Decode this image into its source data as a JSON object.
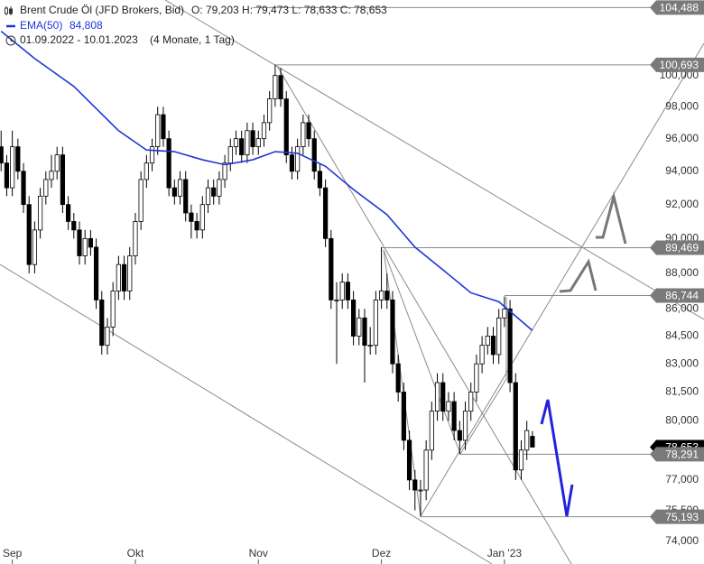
{
  "chart_data": {
    "type": "candlestick",
    "title": "Brent Crude Öl (JFD Brokers, Bid)",
    "ohlc_text": "O: 79,203  H: 79,473  L: 78,633  C: 78,653",
    "date_range": "01.09.2022 - 10.01.2023",
    "period": "(4 Monate, 1 Tag)",
    "log_scale": true,
    "ylim": [
      72.93,
      105.0
    ],
    "yticks": [
      {
        "value": 100,
        "label": "100,000"
      },
      {
        "value": 98,
        "label": "98,000"
      },
      {
        "value": 96,
        "label": "96,000"
      },
      {
        "value": 94,
        "label": "94,000"
      },
      {
        "value": 92,
        "label": "92,000"
      },
      {
        "value": 90,
        "label": "90,000"
      },
      {
        "value": 88,
        "label": "88,000"
      },
      {
        "value": 86,
        "label": "86,000"
      },
      {
        "value": 84.5,
        "label": "84,500"
      },
      {
        "value": 83,
        "label": "83,000"
      },
      {
        "value": 81.5,
        "label": "81,500"
      },
      {
        "value": 80,
        "label": "80,000"
      },
      {
        "value": 77,
        "label": "77,000"
      },
      {
        "value": 75.5,
        "label": "75,500"
      },
      {
        "value": 74,
        "label": "74,000"
      }
    ],
    "xlim": [
      -0.2,
      116
    ],
    "xticks": [
      {
        "value": 2,
        "label": "Sep"
      },
      {
        "value": 24,
        "label": "Okt"
      },
      {
        "value": 46,
        "label": "Nov"
      },
      {
        "value": 68,
        "label": "Dez"
      },
      {
        "value": 90,
        "label": "Jan '23"
      }
    ],
    "up_color": "#ffffff",
    "down_color": "#000000",
    "candles": [
      [
        95.5,
        96.5,
        94,
        94.5
      ],
      [
        94.5,
        95,
        92.5,
        93
      ],
      [
        93,
        96.5,
        92.5,
        95.5
      ],
      [
        95.5,
        96,
        93.5,
        94
      ],
      [
        94,
        94.5,
        91.5,
        92
      ],
      [
        92,
        92.5,
        88,
        88.5
      ],
      [
        88.5,
        91,
        88,
        90.5
      ],
      [
        90.5,
        93,
        90,
        92.5
      ],
      [
        92.5,
        94,
        92,
        93.5
      ],
      [
        93.5,
        95,
        93,
        94
      ],
      [
        94,
        95.5,
        93.5,
        95
      ],
      [
        95,
        95.5,
        91.5,
        92
      ],
      [
        92,
        92.5,
        90.5,
        91
      ],
      [
        91,
        91.5,
        90,
        90.5
      ],
      [
        90.5,
        91,
        88.5,
        89
      ],
      [
        89,
        90.5,
        88.5,
        90
      ],
      [
        90,
        90.5,
        89,
        89.5
      ],
      [
        89.5,
        90,
        86,
        86.5
      ],
      [
        86.5,
        87,
        83.5,
        84
      ],
      [
        84,
        85.5,
        83.5,
        85
      ],
      [
        85,
        87.5,
        84.5,
        87
      ],
      [
        87,
        89,
        86.5,
        88.5
      ],
      [
        88.5,
        89,
        86.5,
        87
      ],
      [
        87,
        89.5,
        86.5,
        89
      ],
      [
        89,
        91.5,
        88.5,
        91
      ],
      [
        91,
        94,
        90.5,
        93.5
      ],
      [
        93.5,
        95,
        93,
        94.5
      ],
      [
        94.5,
        96,
        94,
        95.5
      ],
      [
        95.5,
        98,
        95,
        97.5
      ],
      [
        97.5,
        98,
        95.5,
        96
      ],
      [
        96,
        96.5,
        92.5,
        93
      ],
      [
        93,
        93.5,
        92,
        92.5
      ],
      [
        92.5,
        94,
        92,
        93.5
      ],
      [
        93.5,
        94,
        91,
        91.5
      ],
      [
        91.5,
        92,
        90,
        91
      ],
      [
        91,
        91.5,
        90,
        90.5
      ],
      [
        90.5,
        92.5,
        90,
        92
      ],
      [
        92,
        93.5,
        91.5,
        93
      ],
      [
        93,
        93.5,
        92,
        92.5
      ],
      [
        92.5,
        94,
        92,
        93.5
      ],
      [
        93.5,
        95,
        93,
        94.5
      ],
      [
        94.5,
        96,
        94,
        95.5
      ],
      [
        95.5,
        96.5,
        95,
        96
      ],
      [
        96,
        96.5,
        94.5,
        95
      ],
      [
        95,
        97,
        94.5,
        96.5
      ],
      [
        96.5,
        97,
        95,
        95.5
      ],
      [
        95.5,
        96.5,
        95,
        96
      ],
      [
        96,
        97.5,
        95.5,
        97
      ],
      [
        97,
        99,
        96.5,
        98.5
      ],
      [
        98.5,
        100.7,
        98,
        100
      ],
      [
        100,
        100.5,
        98,
        98.5
      ],
      [
        98.5,
        99,
        94.5,
        95
      ],
      [
        95,
        95.5,
        93.5,
        94
      ],
      [
        94,
        96,
        93.5,
        95.5
      ],
      [
        95.5,
        97.5,
        95,
        97
      ],
      [
        97,
        97.5,
        95.5,
        96
      ],
      [
        96,
        96.5,
        93.5,
        94
      ],
      [
        94,
        94.5,
        92.5,
        93
      ],
      [
        93,
        93.5,
        89.5,
        90
      ],
      [
        90,
        90.5,
        86,
        86.5
      ],
      [
        86.5,
        87.5,
        83,
        86.5
      ],
      [
        86.5,
        88,
        86,
        87.5
      ],
      [
        87.5,
        88,
        86,
        86.5
      ],
      [
        86.5,
        87,
        84,
        84.5
      ],
      [
        84.5,
        86,
        84,
        85.5
      ],
      [
        85.5,
        86,
        82,
        84
      ],
      [
        84,
        85,
        83.5,
        84
      ],
      [
        84,
        87,
        83.5,
        86.5
      ],
      [
        86.5,
        89.5,
        86,
        87
      ],
      [
        87,
        88,
        86,
        86.5
      ],
      [
        86.5,
        87,
        82.5,
        83
      ],
      [
        83,
        83.5,
        81,
        81.5
      ],
      [
        81.5,
        82,
        78.5,
        79
      ],
      [
        79,
        79.5,
        76.5,
        77
      ],
      [
        77,
        77.5,
        75.5,
        76.5
      ],
      [
        76.5,
        77,
        75.2,
        76.5
      ],
      [
        76.5,
        79,
        76,
        78.5
      ],
      [
        78.5,
        81,
        78,
        80.5
      ],
      [
        80.5,
        82.5,
        80,
        82
      ],
      [
        82,
        82.5,
        80,
        80.5
      ],
      [
        80.5,
        81.5,
        80,
        81
      ],
      [
        81,
        81.5,
        79,
        79.5
      ],
      [
        79.5,
        80,
        78.3,
        79
      ],
      [
        79,
        81,
        78.5,
        80.5
      ],
      [
        80.5,
        82,
        80,
        81.5
      ],
      [
        81.5,
        83.5,
        81,
        83
      ],
      [
        83,
        84.5,
        82.5,
        84
      ],
      [
        84,
        85,
        83.5,
        84.5
      ],
      [
        84.5,
        85,
        83,
        83.5
      ],
      [
        83.5,
        86,
        83,
        85.5
      ],
      [
        85.5,
        86.7,
        85,
        86
      ],
      [
        86,
        86.5,
        81.5,
        82
      ],
      [
        82,
        82.5,
        77,
        77.5
      ],
      [
        77.5,
        79,
        77,
        78.5
      ],
      [
        78.5,
        80,
        78,
        79.5
      ],
      [
        79.203,
        79.473,
        78.633,
        78.653
      ]
    ],
    "ema": {
      "name": "EMA(50)",
      "color": "#1f35d8",
      "last_label": "84,808",
      "x": [
        0,
        6,
        13,
        21,
        26,
        31,
        36,
        40,
        45,
        49,
        53,
        58,
        63,
        69,
        74,
        79,
        84,
        89,
        95
      ],
      "values": [
        102.9,
        101.1,
        99.3,
        96.5,
        95.3,
        95.2,
        94.7,
        94.4,
        94.7,
        95.2,
        95.1,
        94.3,
        92.9,
        91.4,
        89.5,
        88.2,
        86.9,
        86.4,
        84.808
      ]
    },
    "levels": [
      {
        "value": 78.653,
        "label": "78,653",
        "color": "#000000"
      },
      {
        "value": 104.488,
        "label": "104,488",
        "color": "#7a7a7a"
      },
      {
        "value": 100.693,
        "label": "100,693",
        "color": "#7a7a7a"
      },
      {
        "value": 89.469,
        "label": "89,469",
        "color": "#7a7a7a"
      },
      {
        "value": 86.744,
        "label": "86,744",
        "color": "#7a7a7a"
      },
      {
        "value": 78.291,
        "label": "78,291",
        "color": "#7a7a7a"
      },
      {
        "value": 75.193,
        "label": "75,193",
        "color": "#7a7a7a"
      }
    ]
  }
}
